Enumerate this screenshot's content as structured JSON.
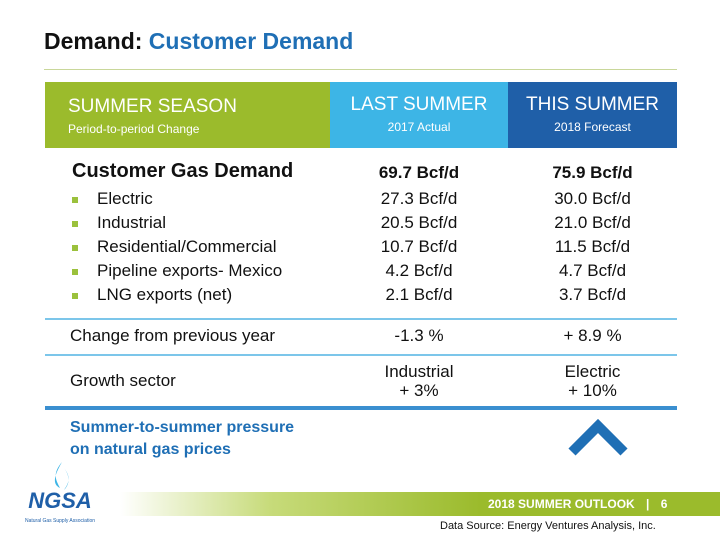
{
  "title": {
    "prefix": "Demand:",
    "main": "Customer Demand"
  },
  "table": {
    "header": [
      {
        "title": "SUMMER SEASON",
        "subtitle": "Period-to-period Change"
      },
      {
        "title": "LAST SUMMER",
        "subtitle": "2017 Actual"
      },
      {
        "title": "THIS SUMMER",
        "subtitle": "2018 Forecast"
      }
    ],
    "total": [
      "Customer Gas Demand",
      "69.7 Bcf/d",
      "75.9 Bcf/d"
    ],
    "items": [
      [
        "Electric",
        "27.3 Bcf/d",
        "30.0 Bcf/d"
      ],
      [
        "Industrial",
        "20.5 Bcf/d",
        "21.0 Bcf/d"
      ],
      [
        "Residential/Commercial",
        "10.7 Bcf/d",
        "11.5 Bcf/d"
      ],
      [
        "Pipeline exports- Mexico",
        "4.2 Bcf/d",
        "4.7 Bcf/d"
      ],
      [
        "LNG exports (net)",
        "2.1 Bcf/d",
        "3.7 Bcf/d"
      ]
    ],
    "change": [
      "Change from previous year",
      "-1.3 %",
      "+ 8.9 %"
    ],
    "growth": {
      "label": "Growth sector",
      "last": [
        "Industrial",
        "+ 3%"
      ],
      "this": [
        "Electric",
        "+ 10%"
      ]
    },
    "pressure": [
      "Summer-to-summer pressure",
      "on natural gas prices"
    ]
  },
  "footer": {
    "logo": "NGSA",
    "logo_subtitle": "Natural Gas Supply Association",
    "banner": "2018 SUMMER OUTLOOK",
    "separator": "|",
    "page": "6",
    "source": "Data Source: Energy Ventures Analysis, Inc."
  }
}
